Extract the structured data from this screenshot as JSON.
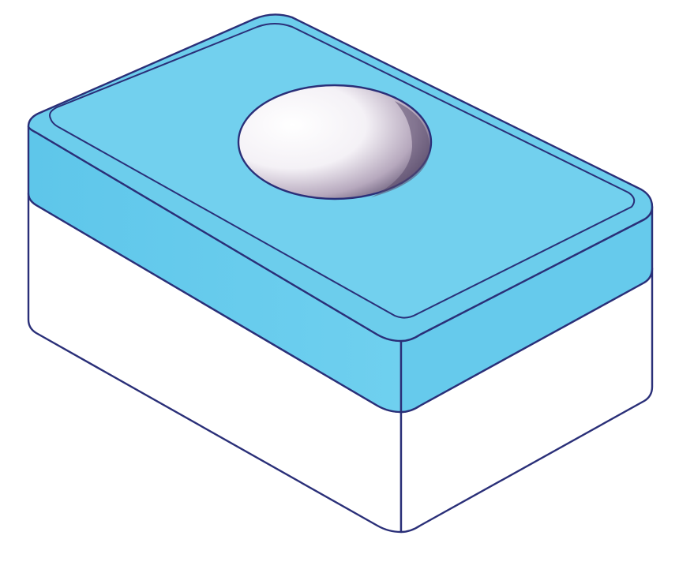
{
  "figure": {
    "subject": "block-with-spherical-recess",
    "colors": {
      "background": "#ffffff",
      "base_face": "#ffffff",
      "top_layer": "#6ccdec",
      "top_layer_dark": "#4fb6dc",
      "outline": "#2a2f78",
      "recess_light": "#ffffff",
      "recess_shadow": "#4b3f5f"
    }
  }
}
